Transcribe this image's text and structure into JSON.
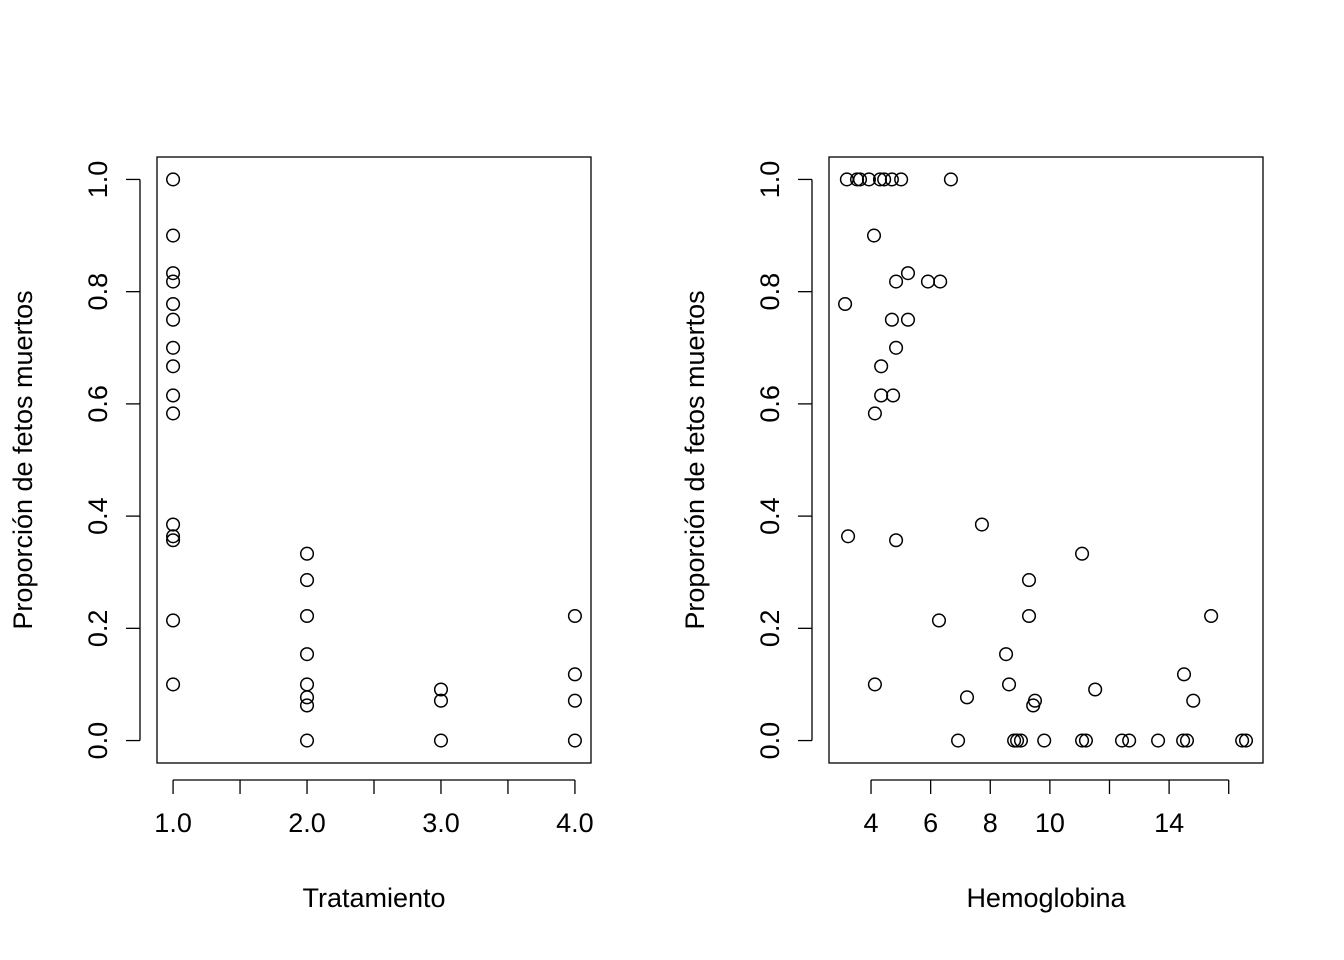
{
  "chart_data": [
    {
      "type": "scatter",
      "x_label": "Tratamiento",
      "y_label": "Proporción de fetos muertos",
      "color": "#000000",
      "x": [
        1,
        1,
        1,
        1,
        1,
        1,
        1,
        1,
        1,
        1,
        1,
        1,
        1,
        1,
        1,
        2,
        2,
        2,
        2,
        2,
        2,
        2,
        2,
        3,
        3,
        3,
        4,
        4,
        4,
        4
      ],
      "values": [
        1.0,
        0.9,
        0.833,
        0.818,
        0.778,
        0.75,
        0.7,
        0.667,
        0.615,
        0.583,
        0.385,
        0.364,
        0.357,
        0.214,
        0.1,
        0.333,
        0.286,
        0.222,
        0.154,
        0.1,
        0.077,
        0.0625,
        0,
        0.091,
        0.071,
        0,
        0.222,
        0.118,
        0.071,
        0
      ],
      "xlim": [
        0.88,
        4.12
      ],
      "ylim": [
        -0.04,
        1.04
      ],
      "xticks": [
        {
          "value": 1,
          "label": "1.0"
        },
        {
          "value": 1.5,
          "label": null
        },
        {
          "value": 2,
          "label": "2.0"
        },
        {
          "value": 2.5,
          "label": null
        },
        {
          "value": 3,
          "label": "3.0"
        },
        {
          "value": 3.5,
          "label": null
        },
        {
          "value": 4,
          "label": "4.0"
        }
      ],
      "yticks": [
        {
          "value": 0,
          "label": "0.0"
        },
        {
          "value": 0.2,
          "label": "0.2"
        },
        {
          "value": 0.4,
          "label": "0.4"
        },
        {
          "value": 0.6,
          "label": "0.6"
        },
        {
          "value": 0.8,
          "label": "0.8"
        },
        {
          "value": 1,
          "label": "1.0"
        }
      ]
    },
    {
      "type": "scatter",
      "x_label": "Hemoglobina",
      "y_label": "Proporción de fetos muertos",
      "color": "#000000",
      "x": [
        3.19,
        3.53,
        3.63,
        3.93,
        4.3,
        4.44,
        4.7,
        5.01,
        6.68,
        4.1,
        5.24,
        4.84,
        5.91,
        6.32,
        3.13,
        4.7,
        5.24,
        4.84,
        4.34,
        4.34,
        4.74,
        4.13,
        7.72,
        3.23,
        4.84,
        11.08,
        9.3,
        9.3,
        15.41,
        6.28,
        8.53,
        14.5,
        4.13,
        8.63,
        11.52,
        7.22,
        9.5,
        14.81,
        9.44,
        6.92,
        8.8,
        8.9,
        9.03,
        9.81,
        11.08,
        11.21,
        12.42,
        12.66,
        13.63,
        14.47,
        14.6,
        16.45,
        16.58
      ],
      "values": [
        1,
        1,
        1,
        1,
        1,
        1,
        1,
        1,
        1,
        0.9,
        0.833,
        0.818,
        0.818,
        0.818,
        0.778,
        0.75,
        0.75,
        0.7,
        0.667,
        0.615,
        0.615,
        0.583,
        0.385,
        0.364,
        0.357,
        0.333,
        0.286,
        0.222,
        0.222,
        0.214,
        0.154,
        0.118,
        0.1,
        0.1,
        0.091,
        0.077,
        0.071,
        0.071,
        0.0625,
        0,
        0,
        0,
        0,
        0,
        0,
        0,
        0,
        0,
        0,
        0,
        0,
        0,
        0
      ],
      "xlim": [
        2.59,
        17.15
      ],
      "ylim": [
        -0.04,
        1.04
      ],
      "xticks": [
        4,
        6,
        8,
        10,
        {
          "value": 12,
          "label": null
        },
        14,
        {
          "value": 16,
          "label": null
        }
      ],
      "yticks": [
        {
          "value": 0,
          "label": "0.0"
        },
        {
          "value": 0.2,
          "label": "0.2"
        },
        {
          "value": 0.4,
          "label": "0.4"
        },
        {
          "value": 0.6,
          "label": "0.6"
        },
        {
          "value": 0.8,
          "label": "0.8"
        },
        {
          "value": 1,
          "label": "1.0"
        }
      ]
    }
  ]
}
